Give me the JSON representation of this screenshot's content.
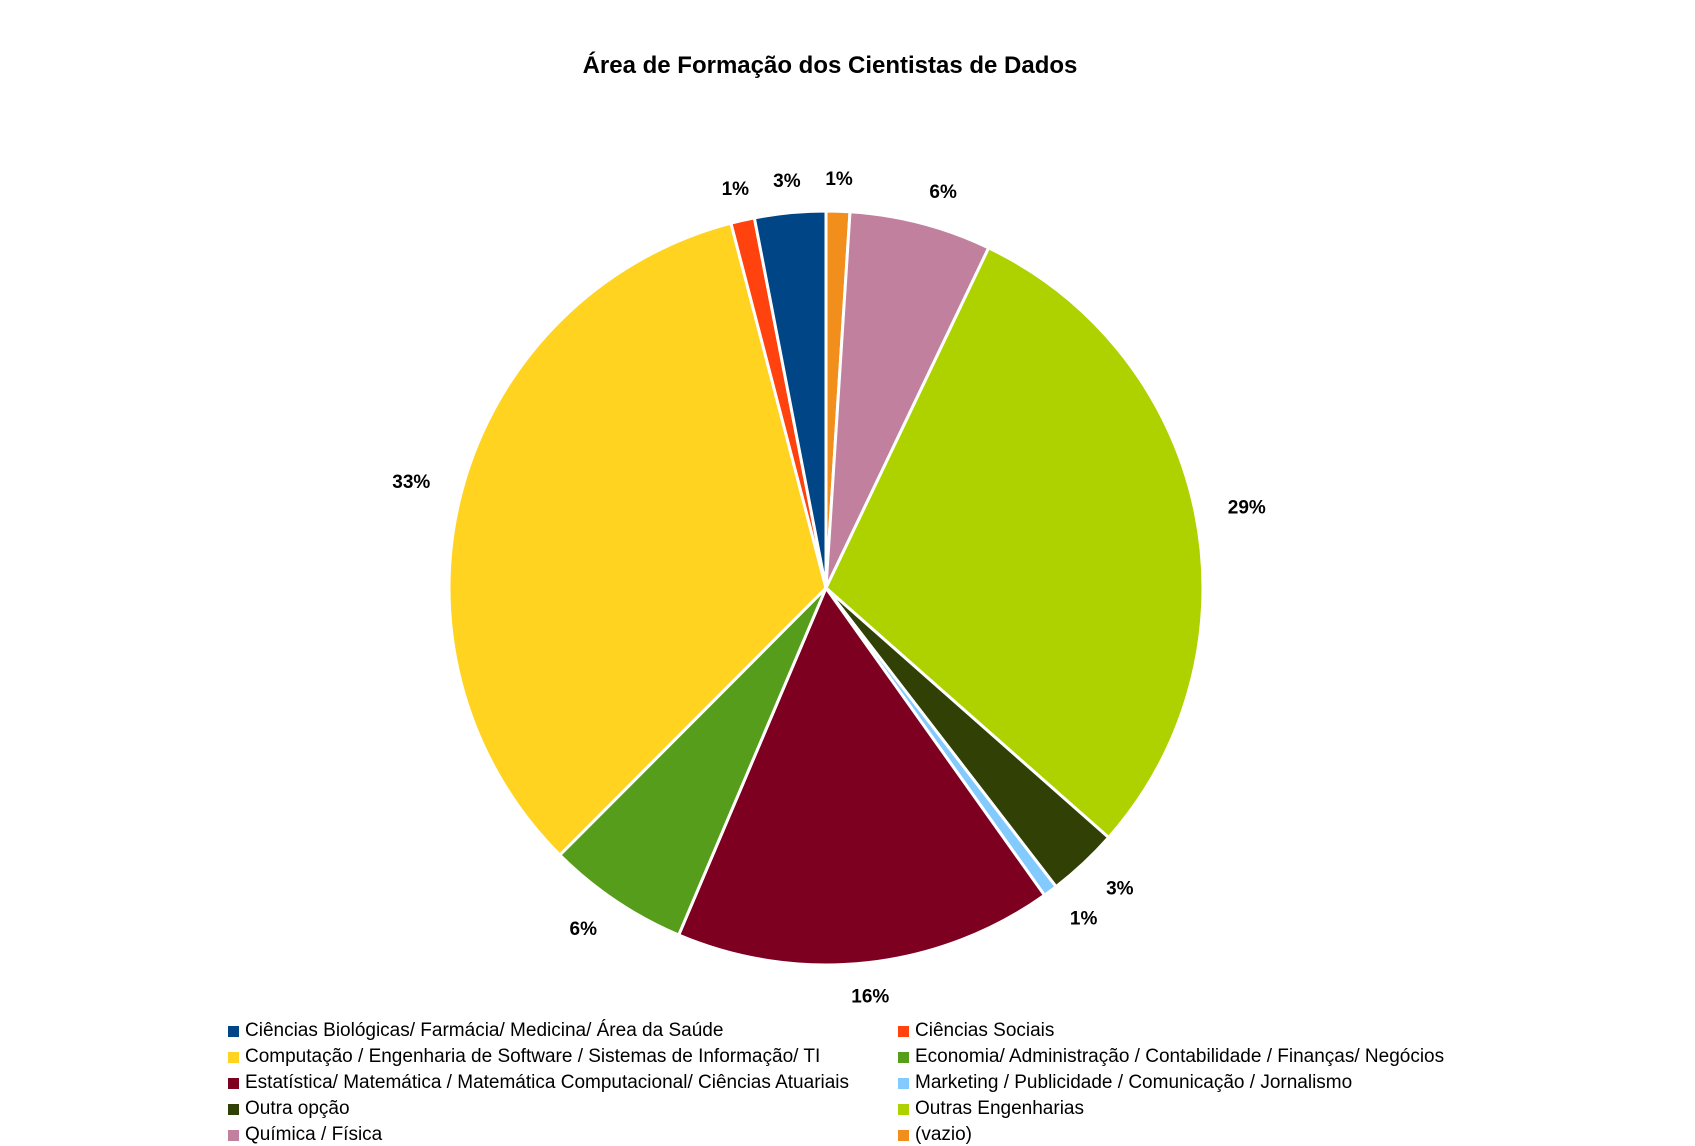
{
  "chart_data": {
    "type": "pie",
    "title": "Área de Formação dos Cientistas de Dados",
    "start_angle_deg": 0,
    "legend_position": "bottom",
    "slices": [
      {
        "name": "(vazio)",
        "value": 1,
        "label": "1%",
        "color": "#f28e1c"
      },
      {
        "name": "Química / Física",
        "value": 6,
        "label": "6%",
        "color": "#c0809e"
      },
      {
        "name": "Outras Engenharias",
        "value": 29,
        "label": "29%",
        "color": "#aed100"
      },
      {
        "name": "Outra opção",
        "value": 3,
        "label": "3%",
        "color": "#314004"
      },
      {
        "name": "Marketing / Publicidade / Comunicação / Jornalismo",
        "value": 0.6,
        "label": "1%",
        "color": "#83caff"
      },
      {
        "name": "Estatística/ Matemática / Matemática Computacional/ Ciências Atuariais",
        "value": 16,
        "label": "16%",
        "color": "#7e0021"
      },
      {
        "name": "Economia/ Administração / Contabilidade / Finanças/ Negócios",
        "value": 6,
        "label": "6%",
        "color": "#579d1c"
      },
      {
        "name": "Computação / Engenharia de Software / Sistemas de Informação/ TI",
        "value": 33,
        "label": "33%",
        "color": "#ffd320"
      },
      {
        "name": "Ciências Sociais",
        "value": 1,
        "label": "1%",
        "color": "#ff420e"
      },
      {
        "name": "Ciências Biológicas/ Farmácia/ Medicina/ Área da Saúde",
        "value": 3,
        "label": "3%",
        "color": "#004586"
      }
    ],
    "legend": [
      {
        "name": "Ciências Biológicas/ Farmácia/ Medicina/ Área da Saúde",
        "color": "#004586"
      },
      {
        "name": "Ciências Sociais",
        "color": "#ff420e"
      },
      {
        "name": "Computação / Engenharia de Software / Sistemas de Informação/ TI",
        "color": "#ffd320"
      },
      {
        "name": "Economia/ Administração / Contabilidade / Finanças/ Negócios",
        "color": "#579d1c"
      },
      {
        "name": "Estatística/ Matemática / Matemática Computacional/ Ciências Atuariais",
        "color": "#7e0021"
      },
      {
        "name": "Marketing / Publicidade / Comunicação / Jornalismo",
        "color": "#83caff"
      },
      {
        "name": "Outra opção",
        "color": "#314004"
      },
      {
        "name": "Outras Engenharias",
        "color": "#aed100"
      },
      {
        "name": "Química / Física",
        "color": "#c0809e"
      },
      {
        "name": "(vazio)",
        "color": "#f28e1c"
      }
    ]
  }
}
